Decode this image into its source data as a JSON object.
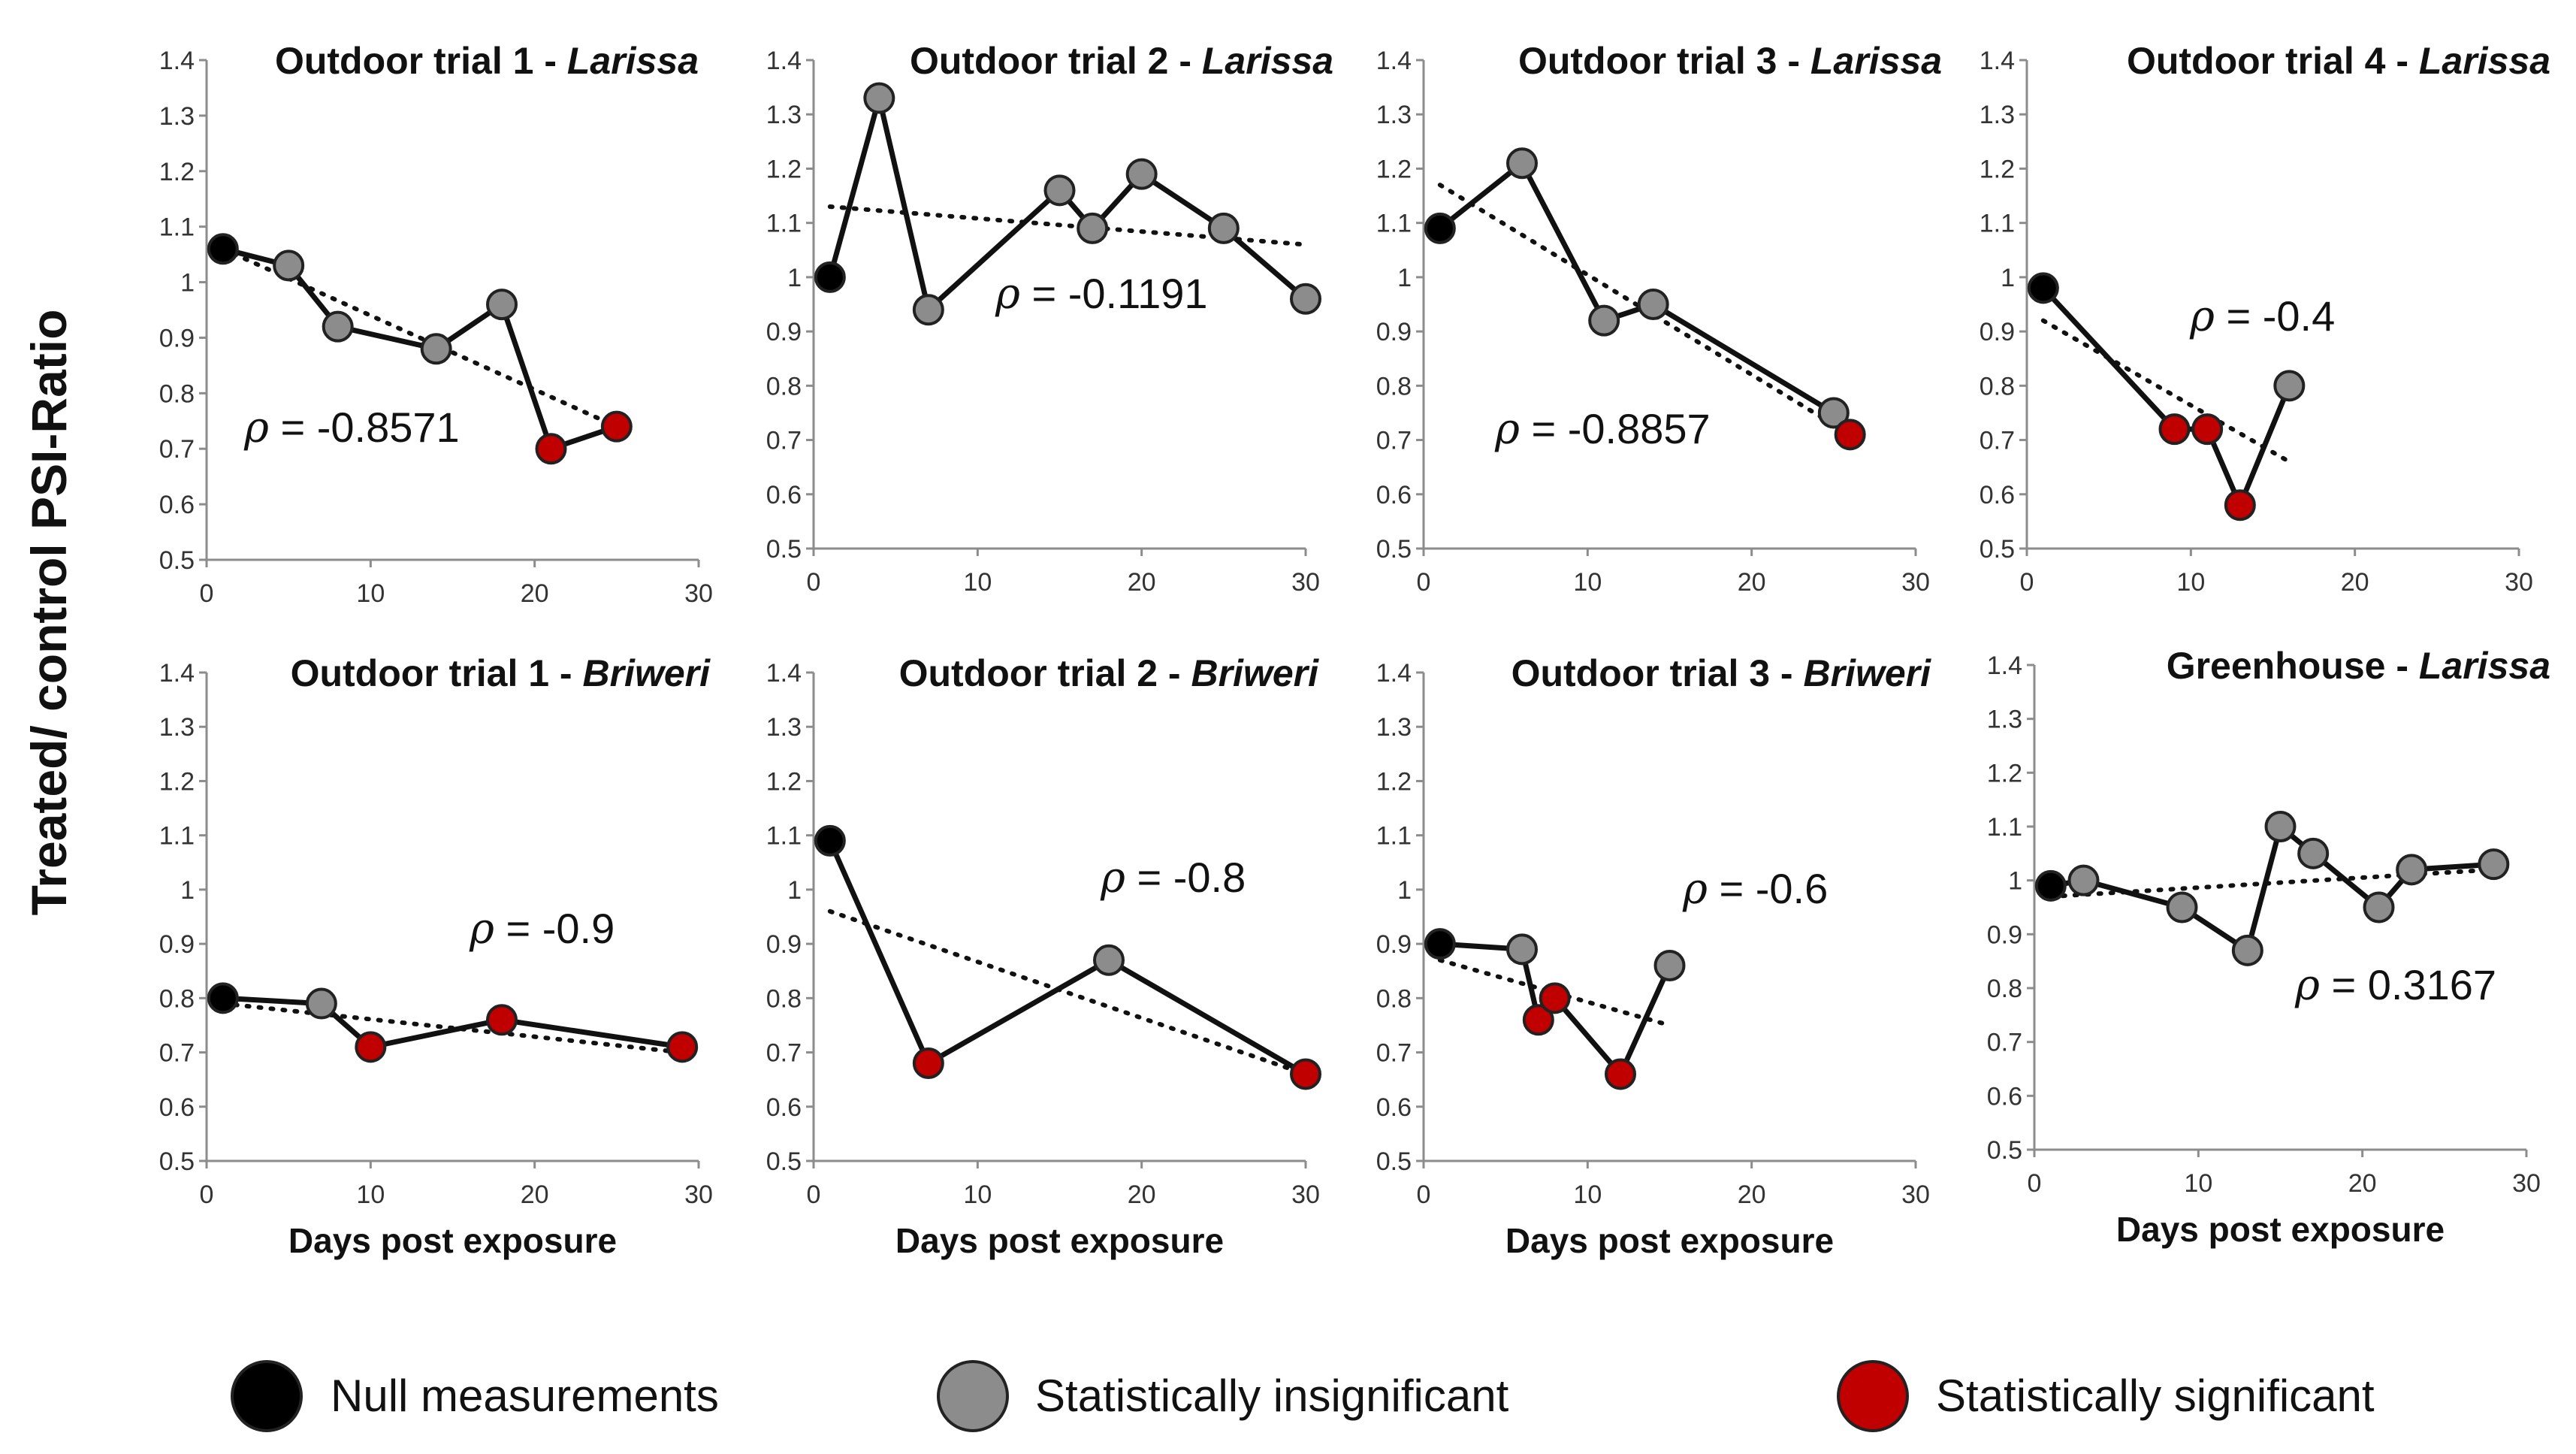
{
  "figure": {
    "y_axis_label": "Treated/ control PSI-Ratio",
    "legend": [
      {
        "label": "Null measurements",
        "color": "#000000",
        "key": "null"
      },
      {
        "label": "Statistically insignificant",
        "color": "#8c8c8c",
        "key": "ns"
      },
      {
        "label": "Statistically significant",
        "color": "#c00000",
        "key": "sig"
      }
    ]
  },
  "chart_data": [
    {
      "type": "line",
      "title": "Outdoor trial 1 - ",
      "title_species": "Larissa",
      "xlabel": "",
      "ylabel": "Treated/ control PSI-Ratio",
      "xlim": [
        0,
        30
      ],
      "ylim": [
        0.5,
        1.4
      ],
      "xticks": [
        "0",
        "10",
        "20",
        "30"
      ],
      "yticks": [
        "0.5",
        "0.6",
        "0.7",
        "0.8",
        "0.9",
        "1",
        "1.1",
        "1.2",
        "1.3",
        "1.4"
      ],
      "rho_text": "ρ = -0.8571",
      "trend": {
        "x": [
          1,
          25
        ],
        "y": [
          1.06,
          0.74
        ]
      },
      "points": [
        {
          "x": 1,
          "y": 1.06,
          "status": "null"
        },
        {
          "x": 5,
          "y": 1.03,
          "status": "ns"
        },
        {
          "x": 8,
          "y": 0.92,
          "status": "ns"
        },
        {
          "x": 14,
          "y": 0.88,
          "status": "ns"
        },
        {
          "x": 18,
          "y": 0.96,
          "status": "ns"
        },
        {
          "x": 21,
          "y": 0.7,
          "status": "sig"
        },
        {
          "x": 25,
          "y": 0.74,
          "status": "sig"
        }
      ]
    },
    {
      "type": "line",
      "title": "Outdoor trial 2 - ",
      "title_species": "Larissa",
      "xlabel": "",
      "ylabel": "",
      "xlim": [
        0,
        30
      ],
      "ylim": [
        0.5,
        1.4
      ],
      "xticks": [
        "0",
        "10",
        "20",
        "30"
      ],
      "yticks": [
        "0.5",
        "0.6",
        "0.7",
        "0.8",
        "0.9",
        "1",
        "1.1",
        "1.2",
        "1.3",
        "1.4"
      ],
      "rho_text": "ρ = -0.1191",
      "trend": {
        "x": [
          1,
          30
        ],
        "y": [
          1.13,
          1.06
        ]
      },
      "points": [
        {
          "x": 1,
          "y": 1.0,
          "status": "null"
        },
        {
          "x": 4,
          "y": 1.33,
          "status": "ns"
        },
        {
          "x": 7,
          "y": 0.94,
          "status": "ns"
        },
        {
          "x": 15,
          "y": 1.16,
          "status": "ns"
        },
        {
          "x": 17,
          "y": 1.09,
          "status": "ns"
        },
        {
          "x": 20,
          "y": 1.19,
          "status": "ns"
        },
        {
          "x": 25,
          "y": 1.09,
          "status": "ns"
        },
        {
          "x": 30,
          "y": 0.96,
          "status": "ns"
        }
      ]
    },
    {
      "type": "line",
      "title": "Outdoor trial 3 - ",
      "title_species": "Larissa",
      "xlabel": "",
      "ylabel": "",
      "xlim": [
        0,
        30
      ],
      "ylim": [
        0.5,
        1.4
      ],
      "xticks": [
        "0",
        "10",
        "20",
        "30"
      ],
      "yticks": [
        "0.5",
        "0.6",
        "0.7",
        "0.8",
        "0.9",
        "1",
        "1.1",
        "1.2",
        "1.3",
        "1.4"
      ],
      "rho_text": "ρ = -0.8857",
      "trend": {
        "x": [
          1,
          26
        ],
        "y": [
          1.17,
          0.71
        ]
      },
      "points": [
        {
          "x": 1,
          "y": 1.09,
          "status": "null"
        },
        {
          "x": 6,
          "y": 1.21,
          "status": "ns"
        },
        {
          "x": 11,
          "y": 0.92,
          "status": "ns"
        },
        {
          "x": 14,
          "y": 0.95,
          "status": "ns"
        },
        {
          "x": 25,
          "y": 0.75,
          "status": "ns"
        },
        {
          "x": 26,
          "y": 0.71,
          "status": "sig"
        }
      ]
    },
    {
      "type": "line",
      "title": "Outdoor trial 4 - ",
      "title_species": "Larissa",
      "xlabel": "",
      "ylabel": "",
      "xlim": [
        0,
        30
      ],
      "ylim": [
        0.5,
        1.4
      ],
      "xticks": [
        "0",
        "10",
        "20",
        "30"
      ],
      "yticks": [
        "0.5",
        "0.6",
        "0.7",
        "0.8",
        "0.9",
        "1",
        "1.1",
        "1.2",
        "1.3",
        "1.4"
      ],
      "rho_text": "ρ = -0.4",
      "trend": {
        "x": [
          1,
          16
        ],
        "y": [
          0.92,
          0.66
        ]
      },
      "points": [
        {
          "x": 1,
          "y": 0.98,
          "status": "null"
        },
        {
          "x": 9,
          "y": 0.72,
          "status": "sig"
        },
        {
          "x": 11,
          "y": 0.72,
          "status": "sig"
        },
        {
          "x": 13,
          "y": 0.58,
          "status": "sig"
        },
        {
          "x": 16,
          "y": 0.8,
          "status": "ns"
        }
      ]
    },
    {
      "type": "line",
      "title": "Outdoor trial 1 - ",
      "title_species": "Briweri",
      "xlabel": "Days post exposure",
      "ylabel": "",
      "xlim": [
        0,
        30
      ],
      "ylim": [
        0.5,
        1.4
      ],
      "xticks": [
        "0",
        "10",
        "20",
        "30"
      ],
      "yticks": [
        "0.5",
        "0.6",
        "0.7",
        "0.8",
        "0.9",
        "1",
        "1.1",
        "1.2",
        "1.3",
        "1.4"
      ],
      "rho_text": "ρ = -0.9",
      "trend": {
        "x": [
          1,
          29
        ],
        "y": [
          0.79,
          0.7
        ]
      },
      "points": [
        {
          "x": 1,
          "y": 0.8,
          "status": "null"
        },
        {
          "x": 7,
          "y": 0.79,
          "status": "ns"
        },
        {
          "x": 10,
          "y": 0.71,
          "status": "sig"
        },
        {
          "x": 18,
          "y": 0.76,
          "status": "sig"
        },
        {
          "x": 29,
          "y": 0.71,
          "status": "sig"
        }
      ]
    },
    {
      "type": "line",
      "title": "Outdoor trial 2 - ",
      "title_species": "Briweri",
      "xlabel": "Days post exposure",
      "ylabel": "",
      "xlim": [
        0,
        30
      ],
      "ylim": [
        0.5,
        1.4
      ],
      "xticks": [
        "0",
        "10",
        "20",
        "30"
      ],
      "yticks": [
        "0.5",
        "0.6",
        "0.7",
        "0.8",
        "0.9",
        "1",
        "1.1",
        "1.2",
        "1.3",
        "1.4"
      ],
      "rho_text": "ρ = -0.8",
      "trend": {
        "x": [
          1,
          30
        ],
        "y": [
          0.96,
          0.66
        ]
      },
      "points": [
        {
          "x": 1,
          "y": 1.09,
          "status": "null"
        },
        {
          "x": 7,
          "y": 0.68,
          "status": "sig"
        },
        {
          "x": 18,
          "y": 0.87,
          "status": "ns"
        },
        {
          "x": 30,
          "y": 0.66,
          "status": "sig"
        }
      ]
    },
    {
      "type": "line",
      "title": "Outdoor trial 3 - ",
      "title_species": "Briweri",
      "xlabel": "Days post exposure",
      "ylabel": "",
      "xlim": [
        0,
        30
      ],
      "ylim": [
        0.5,
        1.4
      ],
      "xticks": [
        "0",
        "10",
        "20",
        "30"
      ],
      "yticks": [
        "0.5",
        "0.6",
        "0.7",
        "0.8",
        "0.9",
        "1",
        "1.1",
        "1.2",
        "1.3",
        "1.4"
      ],
      "rho_text": "ρ = -0.6",
      "trend": {
        "x": [
          1,
          15
        ],
        "y": [
          0.87,
          0.75
        ]
      },
      "points": [
        {
          "x": 1,
          "y": 0.9,
          "status": "null"
        },
        {
          "x": 6,
          "y": 0.89,
          "status": "ns"
        },
        {
          "x": 7,
          "y": 0.76,
          "status": "sig"
        },
        {
          "x": 8,
          "y": 0.8,
          "status": "sig"
        },
        {
          "x": 12,
          "y": 0.66,
          "status": "sig"
        },
        {
          "x": 15,
          "y": 0.86,
          "status": "ns"
        }
      ]
    },
    {
      "type": "line",
      "title": "Greenhouse - ",
      "title_species": "Larissa",
      "xlabel": "Days post exposure",
      "ylabel": "",
      "xlim": [
        0,
        30
      ],
      "ylim": [
        0.5,
        1.4
      ],
      "xticks": [
        "0",
        "10",
        "20",
        "30"
      ],
      "yticks": [
        "0.5",
        "0.6",
        "0.7",
        "0.8",
        "0.9",
        "1",
        "1.1",
        "1.2",
        "1.3",
        "1.4"
      ],
      "rho_text": "ρ = 0.3167",
      "trend": {
        "x": [
          1,
          28
        ],
        "y": [
          0.97,
          1.02
        ]
      },
      "points": [
        {
          "x": 1,
          "y": 0.99,
          "status": "null"
        },
        {
          "x": 3,
          "y": 1.0,
          "status": "ns"
        },
        {
          "x": 9,
          "y": 0.95,
          "status": "ns"
        },
        {
          "x": 13,
          "y": 0.87,
          "status": "ns"
        },
        {
          "x": 15,
          "y": 1.1,
          "status": "ns"
        },
        {
          "x": 17,
          "y": 1.05,
          "status": "ns"
        },
        {
          "x": 21,
          "y": 0.95,
          "status": "ns"
        },
        {
          "x": 23,
          "y": 1.02,
          "status": "ns"
        },
        {
          "x": 28,
          "y": 1.03,
          "status": "ns"
        }
      ]
    }
  ]
}
